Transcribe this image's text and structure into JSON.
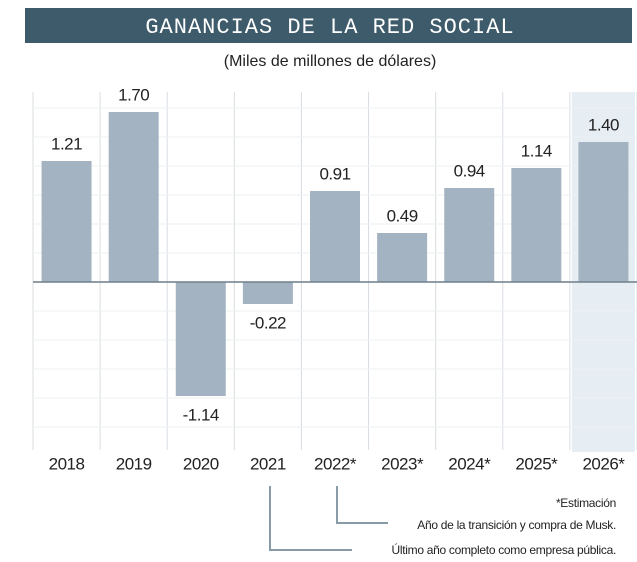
{
  "chart_data": {
    "type": "bar",
    "title": "GANANCIAS DE LA RED SOCIAL",
    "subtitle": "(Miles de millones de dólares)",
    "categories": [
      "2018",
      "2019",
      "2020",
      "2021",
      "2022*",
      "2023*",
      "2024*",
      "2025*",
      "2026*"
    ],
    "values": [
      1.21,
      1.7,
      -1.14,
      -0.22,
      0.91,
      0.49,
      0.94,
      1.14,
      1.4
    ],
    "value_labels": [
      "1.21",
      "1.70",
      "-1.14",
      "-0.22",
      "0.91",
      "0.49",
      "0.94",
      "1.14",
      "1.40"
    ],
    "color": "#a3b3c1",
    "ylim": [
      -1.6,
      1.9
    ],
    "grid": true,
    "annotations": [
      "*Estimación",
      "Año de la transición y compra de Musk.",
      "Último año completo como empresa pública."
    ]
  }
}
